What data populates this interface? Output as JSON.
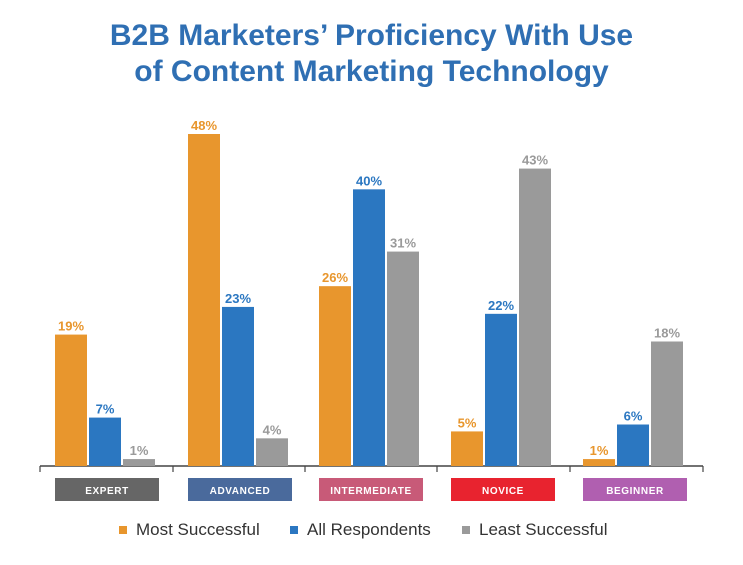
{
  "title_line1": "B2B Marketers’ Proficiency With Use",
  "title_line2": "of Content Marketing Technology",
  "chart_data": {
    "type": "bar",
    "title": "B2B Marketers’ Proficiency With Use of Content Marketing Technology",
    "categories": [
      "EXPERT",
      "ADVANCED",
      "INTERMEDIATE",
      "NOVICE",
      "BEGINNER"
    ],
    "category_colors": [
      "#666666",
      "#4a6a9c",
      "#c85a78",
      "#e8232f",
      "#b05fb0"
    ],
    "series": [
      {
        "name": "Most Successful",
        "color": "#e8962d",
        "values": [
          19,
          48,
          26,
          5,
          1
        ],
        "labels": [
          "19%",
          "48%",
          "26%",
          "5%",
          "1%"
        ]
      },
      {
        "name": "All Respondents",
        "color": "#2b77c1",
        "values": [
          7,
          23,
          40,
          22,
          6
        ],
        "labels": [
          "7%",
          "23%",
          "40%",
          "22%",
          "6%"
        ]
      },
      {
        "name": "Least Successful",
        "color": "#9a9a9a",
        "values": [
          1,
          4,
          31,
          43,
          18
        ],
        "labels": [
          "1%",
          "4%",
          "31%",
          "43%",
          "18%"
        ]
      }
    ],
    "ylim": [
      0,
      48
    ],
    "grid": false,
    "legend": "bottom"
  }
}
